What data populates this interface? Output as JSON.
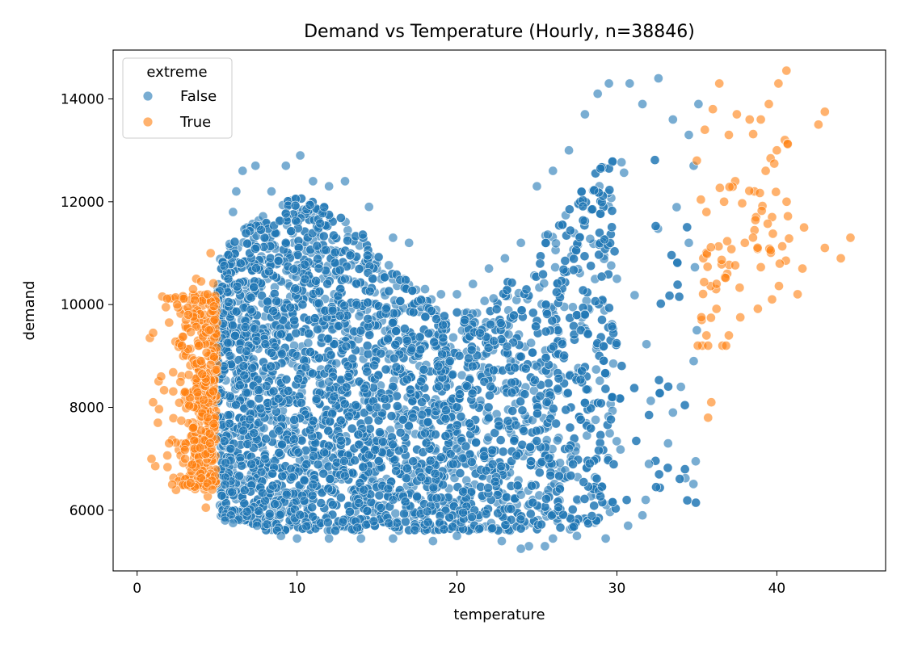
{
  "chart_data": {
    "type": "scatter",
    "title": "Demand vs Temperature (Hourly, n=38846)",
    "xlabel": "temperature",
    "ylabel": "demand",
    "xlim": [
      -1.5,
      46.8
    ],
    "ylim": [
      4820,
      14950
    ],
    "xticks": [
      0,
      10,
      20,
      30,
      40
    ],
    "yticks": [
      6000,
      8000,
      10000,
      12000,
      14000
    ],
    "grid": false,
    "legend": {
      "title": "extreme",
      "placement": "top-left",
      "entries": [
        {
          "label": "False",
          "color": "#1f77b4"
        },
        {
          "label": "True",
          "color": "#ff7f0e"
        }
      ]
    },
    "n_points": 38846,
    "series": [
      {
        "name": "False",
        "color": "#1f77b4",
        "description_points": [
          [
            5.5,
            6500
          ],
          [
            5.8,
            9000
          ],
          [
            6.0,
            11800
          ],
          [
            6.2,
            12200
          ],
          [
            6.6,
            12600
          ],
          [
            7.4,
            12700
          ],
          [
            8.4,
            12200
          ],
          [
            9.3,
            12700
          ],
          [
            10.2,
            12900
          ],
          [
            11.0,
            12400
          ],
          [
            12.0,
            12300
          ],
          [
            13.0,
            12400
          ],
          [
            14.5,
            11900
          ],
          [
            16.0,
            11300
          ],
          [
            17.0,
            11200
          ],
          [
            18.0,
            10300
          ],
          [
            19.0,
            10200
          ],
          [
            20.0,
            10200
          ],
          [
            21.0,
            10400
          ],
          [
            22.0,
            10700
          ],
          [
            23.0,
            10900
          ],
          [
            24.0,
            11200
          ],
          [
            25.0,
            12300
          ],
          [
            26.0,
            12600
          ],
          [
            27.0,
            13000
          ],
          [
            28.0,
            13700
          ],
          [
            28.8,
            14100
          ],
          [
            29.5,
            14300
          ],
          [
            30.8,
            14300
          ],
          [
            31.6,
            13900
          ],
          [
            32.6,
            14400
          ],
          [
            33.5,
            13600
          ],
          [
            34.5,
            13300
          ],
          [
            35.1,
            13900
          ],
          [
            34.8,
            12700
          ],
          [
            34.5,
            11200
          ],
          [
            35.0,
            9500
          ],
          [
            34.8,
            8900
          ],
          [
            34.0,
            8400
          ],
          [
            33.5,
            7900
          ],
          [
            33.2,
            7300
          ],
          [
            32.0,
            6900
          ],
          [
            31.8,
            6200
          ],
          [
            31.6,
            5900
          ],
          [
            30.7,
            5700
          ],
          [
            29.3,
            5450
          ],
          [
            27.5,
            5500
          ],
          [
            26.0,
            5450
          ],
          [
            25.5,
            5300
          ],
          [
            24.5,
            5300
          ],
          [
            24.0,
            5250
          ],
          [
            22.8,
            5400
          ],
          [
            20.0,
            5500
          ],
          [
            18.5,
            5400
          ],
          [
            16.0,
            5450
          ],
          [
            14.0,
            5450
          ],
          [
            12.0,
            5450
          ],
          [
            10.0,
            5450
          ],
          [
            9.0,
            5500
          ],
          [
            7.5,
            5700
          ],
          [
            6.0,
            5750
          ],
          [
            5.5,
            5800
          ],
          [
            10.0,
            9000
          ],
          [
            12.0,
            8500
          ],
          [
            15.0,
            8000
          ],
          [
            18.0,
            7500
          ],
          [
            20.0,
            7200
          ],
          [
            22.0,
            7800
          ],
          [
            25.0,
            8800
          ],
          [
            28.0,
            9800
          ],
          [
            30.0,
            10500
          ],
          [
            8.0,
            7000
          ],
          [
            13.0,
            10500
          ],
          [
            11.0,
            6500
          ],
          [
            16.0,
            6200
          ],
          [
            24.0,
            6300
          ],
          [
            27.0,
            7200
          ]
        ]
      },
      {
        "name": "True",
        "color": "#ff7f0e",
        "description_points": [
          [
            0.8,
            9350
          ],
          [
            1.0,
            9450
          ],
          [
            0.9,
            7000
          ],
          [
            1.0,
            8100
          ],
          [
            1.3,
            7700
          ],
          [
            1.5,
            8600
          ],
          [
            1.8,
            9950
          ],
          [
            2.0,
            9650
          ],
          [
            2.2,
            6500
          ],
          [
            2.5,
            10000
          ],
          [
            2.8,
            9200
          ],
          [
            3.0,
            7000
          ],
          [
            3.2,
            9800
          ],
          [
            3.5,
            10300
          ],
          [
            3.7,
            10500
          ],
          [
            4.0,
            10450
          ],
          [
            4.4,
            10200
          ],
          [
            4.6,
            11000
          ],
          [
            4.3,
            6050
          ],
          [
            4.7,
            6400
          ],
          [
            2.0,
            7300
          ],
          [
            3.0,
            8300
          ],
          [
            4.0,
            8900
          ],
          [
            3.5,
            7600
          ],
          [
            4.5,
            9500
          ],
          [
            35.0,
            12800
          ],
          [
            35.5,
            13400
          ],
          [
            36.0,
            13800
          ],
          [
            36.4,
            14300
          ],
          [
            37.0,
            13300
          ],
          [
            37.5,
            13700
          ],
          [
            38.3,
            13600
          ],
          [
            39.0,
            13600
          ],
          [
            39.5,
            13900
          ],
          [
            40.1,
            14300
          ],
          [
            40.6,
            14550
          ],
          [
            40.0,
            13000
          ],
          [
            40.5,
            13200
          ],
          [
            39.3,
            12600
          ],
          [
            38.6,
            12200
          ],
          [
            37.4,
            12400
          ],
          [
            36.7,
            12000
          ],
          [
            35.6,
            11800
          ],
          [
            35.4,
            10900
          ],
          [
            36.2,
            10300
          ],
          [
            36.9,
            10600
          ],
          [
            37.0,
            9400
          ],
          [
            36.6,
            9200
          ],
          [
            35.3,
            9700
          ],
          [
            35.6,
            9400
          ],
          [
            35.7,
            7800
          ],
          [
            35.9,
            8100
          ],
          [
            38.0,
            11200
          ],
          [
            38.7,
            11700
          ],
          [
            39.7,
            11700
          ],
          [
            39.7,
            10100
          ],
          [
            41.3,
            10200
          ],
          [
            41.6,
            10700
          ],
          [
            41.7,
            11500
          ],
          [
            42.6,
            13500
          ],
          [
            43.0,
            13750
          ],
          [
            43.0,
            11100
          ],
          [
            44.0,
            10900
          ],
          [
            44.6,
            11300
          ]
        ]
      }
    ]
  }
}
